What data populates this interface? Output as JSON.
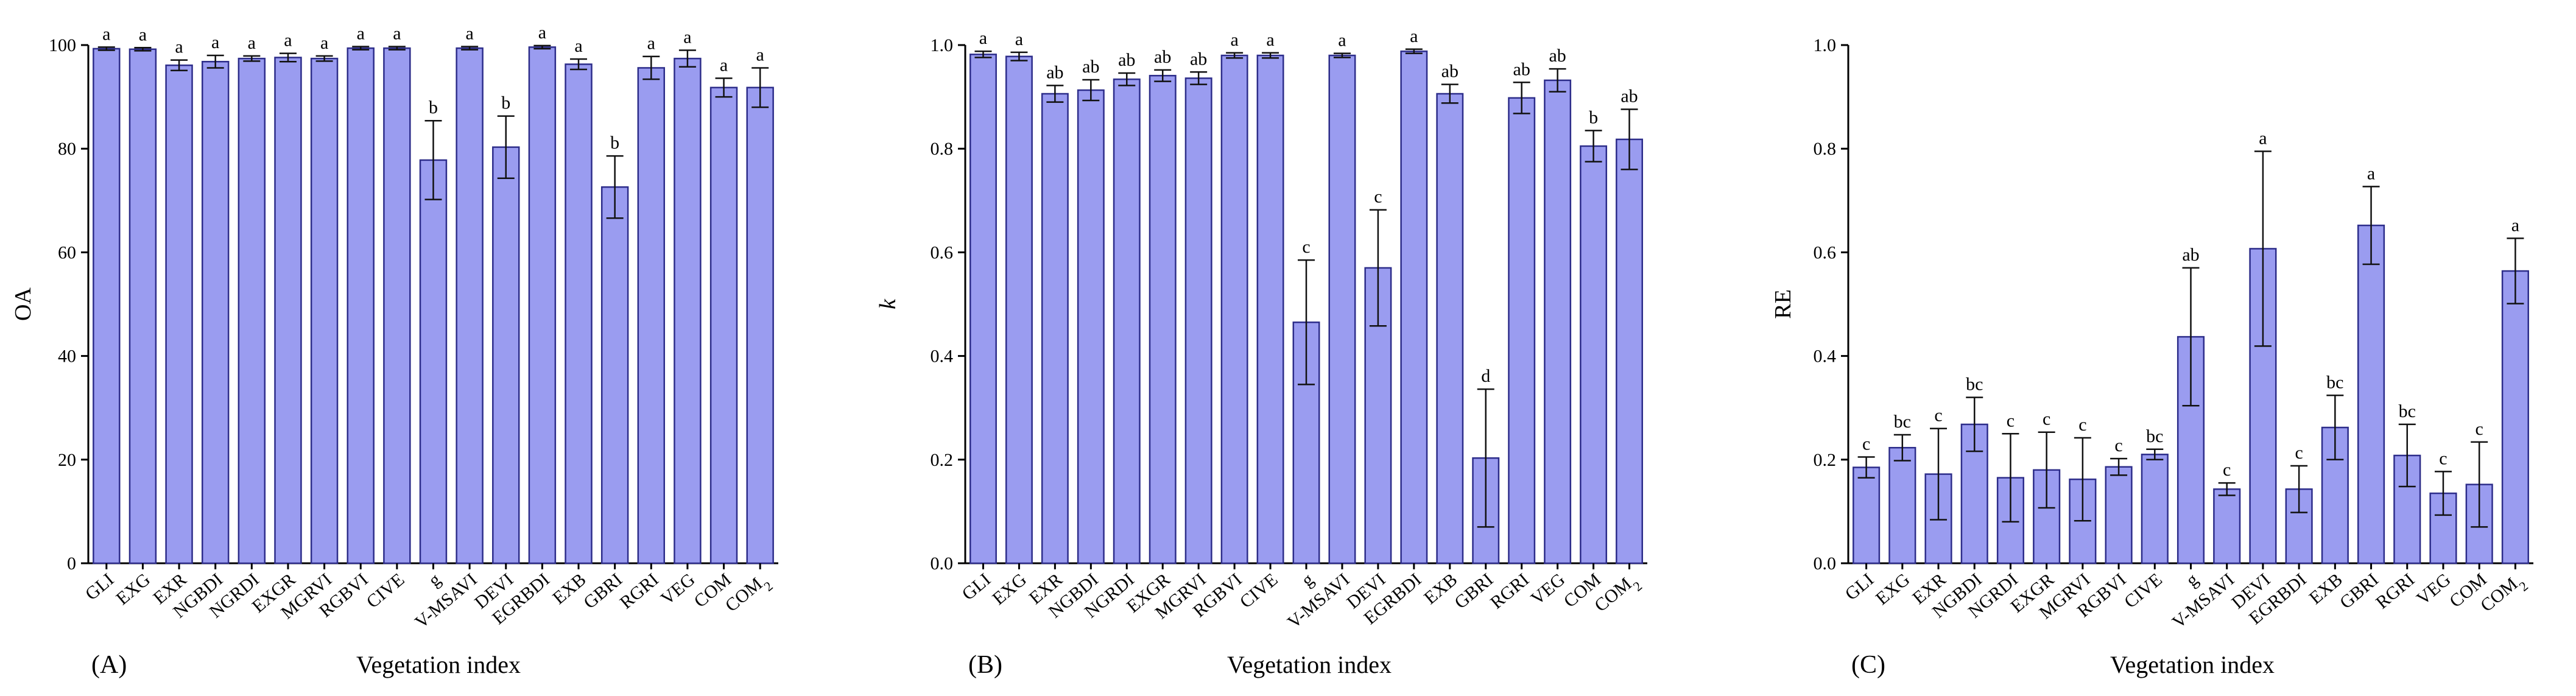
{
  "xlabel": "Vegetation index",
  "categories": [
    "GLI",
    "EXG",
    "EXR",
    "NGBDI",
    "NGRDI",
    "EXGR",
    "MGRVI",
    "RGBVI",
    "CIVE",
    "g",
    "V-MSAVI",
    "DEVI",
    "EGRBDI",
    "EXB",
    "GBRI",
    "RGRI",
    "VEG",
    "COM",
    "COM2"
  ],
  "chart_data": [
    {
      "type": "bar",
      "panel": "(A)",
      "ylabel": "OA",
      "xlabel": "Vegetation index",
      "ylim": [
        0,
        100
      ],
      "yticks": [
        0,
        20,
        40,
        60,
        80,
        100
      ],
      "ytick_labels": [
        "0",
        "20",
        "40",
        "60",
        "80",
        "100"
      ],
      "categories": [
        "GLI",
        "EXR",
        "NGRDI",
        "MGRVI",
        "CIVE",
        "V-MSAVI",
        "EGRBDI",
        "GBRI",
        "VEG",
        "COM2"
      ],
      "labels": [
        "GLI",
        "EXG",
        "EXR",
        "NGBDI",
        "NGRDI",
        "EXGR",
        "MGRVI",
        "RGBVI",
        "CIVE",
        "g",
        "V-MSAVI",
        "DEVI",
        "EGRBDI",
        "EXB",
        "GBRI",
        "RGRI",
        "VEG",
        "COM",
        "COM2"
      ],
      "values": [
        99.3,
        99.2,
        96.1,
        96.8,
        97.4,
        97.6,
        97.4,
        99.4,
        99.4,
        77.8,
        99.4,
        80.3,
        99.6,
        96.3,
        72.6,
        95.6,
        97.4,
        91.8,
        91.8
      ],
      "errors": [
        0.3,
        0.3,
        1.0,
        1.2,
        0.5,
        0.8,
        0.5,
        0.3,
        0.3,
        7.6,
        0.3,
        6.0,
        0.3,
        1.0,
        6.0,
        2.2,
        1.6,
        1.8,
        3.8
      ],
      "letters": [
        "a",
        "a",
        "a",
        "a",
        "a",
        "a",
        "a",
        "a",
        "a",
        "b",
        "a",
        "b",
        "a",
        "a",
        "b",
        "a",
        "a",
        "a",
        "a"
      ]
    },
    {
      "type": "bar",
      "panel": "(B)",
      "ylabel": "k",
      "xlabel": "Vegetation index",
      "ylim": [
        0,
        1.0
      ],
      "yticks": [
        0,
        0.2,
        0.4,
        0.6,
        0.8,
        1.0
      ],
      "ytick_labels": [
        "0.0",
        "0.2",
        "0.4",
        "0.6",
        "0.8",
        "1.0"
      ],
      "categories": [
        "GLI",
        "EXR",
        "NGRDI",
        "MGRVI",
        "CIVE",
        "V-MSAVI",
        "EGRBDI",
        "GBRI",
        "VEG",
        "COM2"
      ],
      "labels": [
        "GLI",
        "EXG",
        "EXR",
        "NGBDI",
        "NGRDI",
        "EXGR",
        "MGRVI",
        "RGBVI",
        "CIVE",
        "g",
        "V-MSAVI",
        "DEVI",
        "EGRBDI",
        "EXB",
        "GBRI",
        "RGRI",
        "VEG",
        "COM",
        "COM2"
      ],
      "values": [
        0.982,
        0.978,
        0.906,
        0.913,
        0.934,
        0.941,
        0.936,
        0.98,
        0.98,
        0.465,
        0.98,
        0.57,
        0.988,
        0.906,
        0.203,
        0.898,
        0.932,
        0.805,
        0.818
      ],
      "errors": [
        0.006,
        0.008,
        0.016,
        0.02,
        0.012,
        0.011,
        0.012,
        0.005,
        0.005,
        0.12,
        0.004,
        0.112,
        0.004,
        0.018,
        0.133,
        0.03,
        0.022,
        0.03,
        0.058
      ],
      "letters": [
        "a",
        "a",
        "ab",
        "ab",
        "ab",
        "ab",
        "ab",
        "a",
        "a",
        "c",
        "a",
        "c",
        "a",
        "ab",
        "d",
        "ab",
        "ab",
        "b",
        "ab"
      ]
    },
    {
      "type": "bar",
      "panel": "(C)",
      "ylabel": "RE",
      "xlabel": "Vegetation index",
      "ylim": [
        0,
        1.0
      ],
      "yticks": [
        0,
        0.2,
        0.4,
        0.6,
        0.8,
        1.0
      ],
      "ytick_labels": [
        "0.0",
        "0.2",
        "0.4",
        "0.6",
        "0.8",
        "1.0"
      ],
      "categories": [
        "GLI",
        "EXR",
        "NGRDI",
        "MGRVI",
        "CIVE",
        "V-MSAVI",
        "EGRBDI",
        "GBRI",
        "VEG",
        "COM2"
      ],
      "labels": [
        "GLI",
        "EXG",
        "EXR",
        "NGBDI",
        "NGRDI",
        "EXGR",
        "MGRVI",
        "RGBVI",
        "CIVE",
        "g",
        "V-MSAVI",
        "DEVI",
        "EGRBDI",
        "EXB",
        "GBRI",
        "RGRI",
        "VEG",
        "COM",
        "COM2"
      ],
      "values": [
        0.185,
        0.223,
        0.172,
        0.268,
        0.165,
        0.18,
        0.162,
        0.186,
        0.21,
        0.437,
        0.143,
        0.607,
        0.143,
        0.262,
        0.652,
        0.208,
        0.135,
        0.152,
        0.564
      ],
      "errors": [
        0.02,
        0.025,
        0.088,
        0.052,
        0.085,
        0.073,
        0.08,
        0.016,
        0.01,
        0.133,
        0.012,
        0.188,
        0.045,
        0.062,
        0.075,
        0.06,
        0.042,
        0.082,
        0.063
      ],
      "letters": [
        "c",
        "bc",
        "c",
        "bc",
        "c",
        "c",
        "c",
        "c",
        "bc",
        "ab",
        "c",
        "a",
        "c",
        "bc",
        "a",
        "bc",
        "c",
        "c",
        "a"
      ]
    }
  ]
}
